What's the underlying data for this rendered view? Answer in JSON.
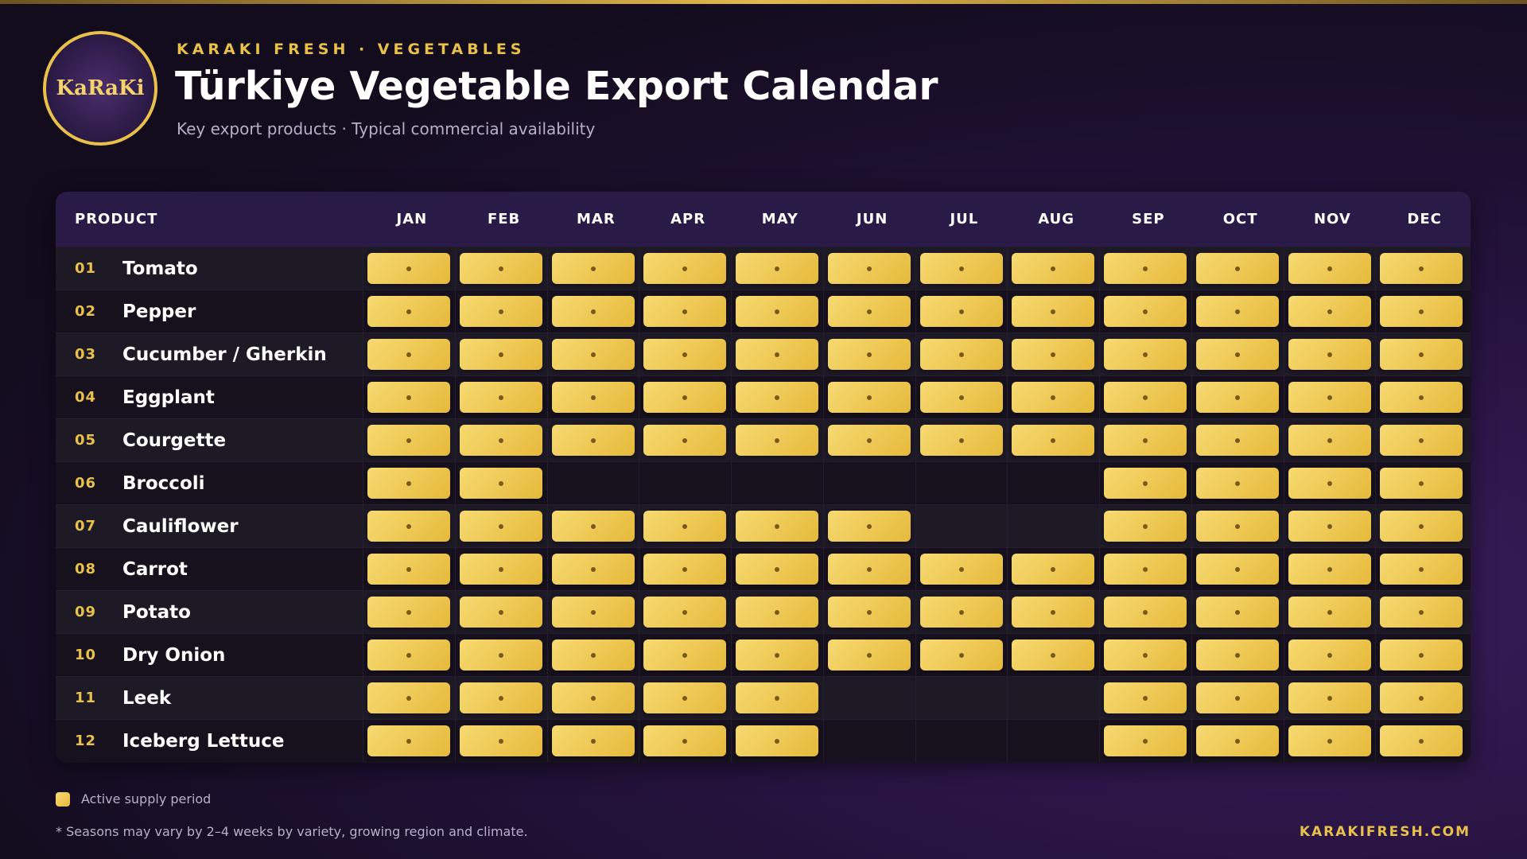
{
  "header": {
    "logo": "KaRaKi",
    "brand": "KARAKI FRESH · VEGETABLES",
    "title": "Türkiye Vegetable Export Calendar",
    "subtitle": "Key export products · Typical commercial availability"
  },
  "table": {
    "product_header": "PRODUCT",
    "months": [
      "JAN",
      "FEB",
      "MAR",
      "APR",
      "MAY",
      "JUN",
      "JUL",
      "AUG",
      "SEP",
      "OCT",
      "NOV",
      "DEC"
    ],
    "rows": [
      {
        "number": "01",
        "name": "Tomato",
        "active": [
          true,
          true,
          true,
          true,
          true,
          true,
          true,
          true,
          true,
          true,
          true,
          true
        ]
      },
      {
        "number": "02",
        "name": "Pepper",
        "active": [
          true,
          true,
          true,
          true,
          true,
          true,
          true,
          true,
          true,
          true,
          true,
          true
        ]
      },
      {
        "number": "03",
        "name": "Cucumber / Gherkin",
        "active": [
          true,
          true,
          true,
          true,
          true,
          true,
          true,
          true,
          true,
          true,
          true,
          true
        ]
      },
      {
        "number": "04",
        "name": "Eggplant",
        "active": [
          true,
          true,
          true,
          true,
          true,
          true,
          true,
          true,
          true,
          true,
          true,
          true
        ]
      },
      {
        "number": "05",
        "name": "Courgette",
        "active": [
          true,
          true,
          true,
          true,
          true,
          true,
          true,
          true,
          true,
          true,
          true,
          true
        ]
      },
      {
        "number": "06",
        "name": "Broccoli",
        "active": [
          true,
          true,
          false,
          false,
          false,
          false,
          false,
          false,
          true,
          true,
          true,
          true
        ]
      },
      {
        "number": "07",
        "name": "Cauliflower",
        "active": [
          true,
          true,
          true,
          true,
          true,
          true,
          false,
          false,
          true,
          true,
          true,
          true
        ]
      },
      {
        "number": "08",
        "name": "Carrot",
        "active": [
          true,
          true,
          true,
          true,
          true,
          true,
          true,
          true,
          true,
          true,
          true,
          true
        ]
      },
      {
        "number": "09",
        "name": "Potato",
        "active": [
          true,
          true,
          true,
          true,
          true,
          true,
          true,
          true,
          true,
          true,
          true,
          true
        ]
      },
      {
        "number": "10",
        "name": "Dry Onion",
        "active": [
          true,
          true,
          true,
          true,
          true,
          true,
          true,
          true,
          true,
          true,
          true,
          true
        ]
      },
      {
        "number": "11",
        "name": "Leek",
        "active": [
          true,
          true,
          true,
          true,
          true,
          false,
          false,
          false,
          true,
          true,
          true,
          true
        ]
      },
      {
        "number": "12",
        "name": "Iceberg Lettuce",
        "active": [
          true,
          true,
          true,
          true,
          true,
          false,
          false,
          false,
          true,
          true,
          true,
          true
        ]
      }
    ]
  },
  "legend": "Active supply period",
  "footnote": "* Seasons may vary by 2–4 weeks by variety, growing region and climate.",
  "website": "KARAKIFRESH.COM"
}
